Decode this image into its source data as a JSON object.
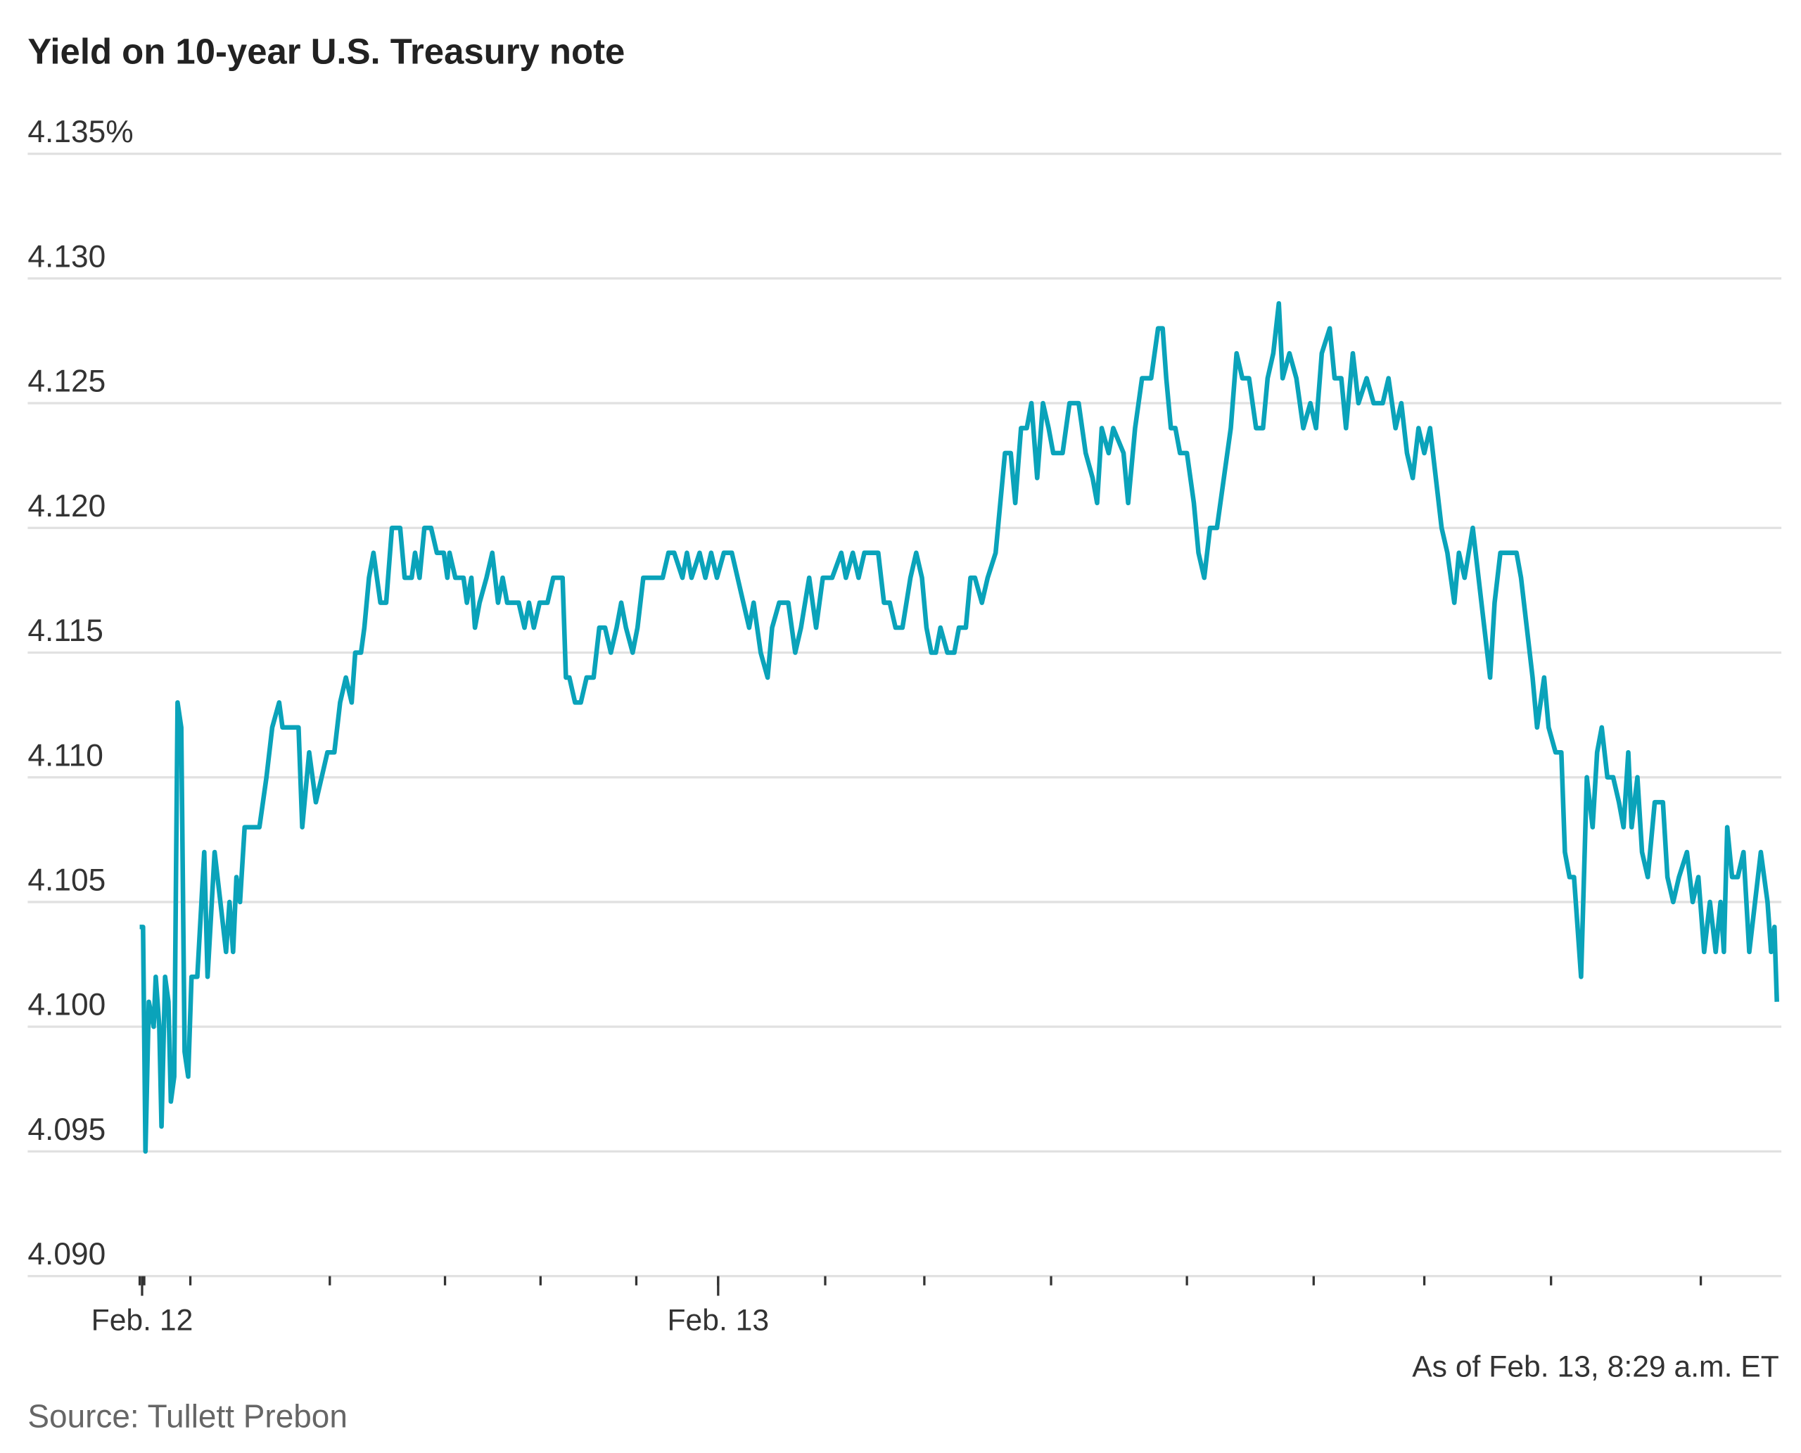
{
  "chart_data": {
    "type": "line",
    "title": "Yield on 10-year U.S. Treasury note",
    "ylabel": "",
    "xlabel": "",
    "ylim": [
      4.09,
      4.135
    ],
    "yticks": [
      4.135,
      4.13,
      4.125,
      4.12,
      4.115,
      4.11,
      4.105,
      4.1,
      4.095,
      4.09
    ],
    "ytick_labels": [
      "4.135%",
      "4.130",
      "4.125",
      "4.120",
      "4.115",
      "4.110",
      "4.105",
      "4.100",
      "4.095",
      "4.090"
    ],
    "x_unit": "hours since start of plotted period",
    "xlim": [
      0,
      68.3
    ],
    "x_ticks": [
      0,
      0.19,
      2.11,
      7.92,
      12.72,
      16.7,
      20.69,
      24.1,
      28.56,
      32.69,
      37.97,
      43.63,
      48.91,
      53.52,
      58.8,
      65.04
    ],
    "x_major_ticks": [
      {
        "x": 0.1,
        "label": "Feb. 12"
      },
      {
        "x": 24.1,
        "label": "Feb. 13"
      }
    ],
    "grid": true,
    "line_color": "#0aa3ba",
    "series": [
      {
        "name": "10-year yield",
        "points": [
          [
            0,
            4.104
          ],
          [
            0.14,
            4.104
          ],
          [
            0.24,
            4.095
          ],
          [
            0.38,
            4.101
          ],
          [
            0.58,
            4.1
          ],
          [
            0.67,
            4.102
          ],
          [
            0.82,
            4.1
          ],
          [
            0.91,
            4.096
          ],
          [
            1.06,
            4.102
          ],
          [
            1.2,
            4.101
          ],
          [
            1.3,
            4.097
          ],
          [
            1.44,
            4.098
          ],
          [
            1.58,
            4.113
          ],
          [
            1.73,
            4.112
          ],
          [
            1.87,
            4.099
          ],
          [
            2.02,
            4.098
          ],
          [
            2.16,
            4.102
          ],
          [
            2.4,
            4.102
          ],
          [
            2.69,
            4.107
          ],
          [
            2.83,
            4.102
          ],
          [
            3.12,
            4.107
          ],
          [
            3.36,
            4.105
          ],
          [
            3.6,
            4.103
          ],
          [
            3.74,
            4.105
          ],
          [
            3.89,
            4.103
          ],
          [
            4.03,
            4.106
          ],
          [
            4.18,
            4.105
          ],
          [
            4.37,
            4.108
          ],
          [
            4.99,
            4.108
          ],
          [
            5.28,
            4.11
          ],
          [
            5.52,
            4.112
          ],
          [
            5.81,
            4.113
          ],
          [
            5.95,
            4.112
          ],
          [
            6.62,
            4.112
          ],
          [
            6.77,
            4.108
          ],
          [
            7.06,
            4.111
          ],
          [
            7.34,
            4.109
          ],
          [
            7.58,
            4.11
          ],
          [
            7.82,
            4.111
          ],
          [
            8.11,
            4.111
          ],
          [
            8.35,
            4.113
          ],
          [
            8.59,
            4.114
          ],
          [
            8.83,
            4.113
          ],
          [
            8.98,
            4.115
          ],
          [
            9.22,
            4.115
          ],
          [
            9.36,
            4.116
          ],
          [
            9.55,
            4.118
          ],
          [
            9.74,
            4.119
          ],
          [
            10.03,
            4.117
          ],
          [
            10.27,
            4.117
          ],
          [
            10.51,
            4.12
          ],
          [
            10.85,
            4.12
          ],
          [
            11.04,
            4.118
          ],
          [
            11.33,
            4.118
          ],
          [
            11.47,
            4.119
          ],
          [
            11.66,
            4.118
          ],
          [
            11.86,
            4.12
          ],
          [
            12.14,
            4.12
          ],
          [
            12.38,
            4.119
          ],
          [
            12.67,
            4.119
          ],
          [
            12.82,
            4.118
          ],
          [
            12.91,
            4.119
          ],
          [
            13.15,
            4.118
          ],
          [
            13.49,
            4.118
          ],
          [
            13.63,
            4.117
          ],
          [
            13.82,
            4.118
          ],
          [
            13.97,
            4.116
          ],
          [
            14.16,
            4.117
          ],
          [
            14.45,
            4.118
          ],
          [
            14.69,
            4.119
          ],
          [
            14.93,
            4.117
          ],
          [
            15.12,
            4.118
          ],
          [
            15.31,
            4.117
          ],
          [
            15.79,
            4.117
          ],
          [
            16.03,
            4.116
          ],
          [
            16.22,
            4.117
          ],
          [
            16.42,
            4.116
          ],
          [
            16.66,
            4.117
          ],
          [
            16.99,
            4.117
          ],
          [
            17.23,
            4.118
          ],
          [
            17.62,
            4.118
          ],
          [
            17.76,
            4.114
          ],
          [
            17.9,
            4.114
          ],
          [
            18.14,
            4.113
          ],
          [
            18.38,
            4.113
          ],
          [
            18.62,
            4.114
          ],
          [
            18.91,
            4.114
          ],
          [
            19.15,
            4.116
          ],
          [
            19.39,
            4.116
          ],
          [
            19.63,
            4.115
          ],
          [
            19.87,
            4.116
          ],
          [
            20.06,
            4.117
          ],
          [
            20.26,
            4.116
          ],
          [
            20.54,
            4.115
          ],
          [
            20.74,
            4.116
          ],
          [
            20.98,
            4.118
          ],
          [
            21.55,
            4.118
          ],
          [
            21.79,
            4.118
          ],
          [
            22.03,
            4.119
          ],
          [
            22.27,
            4.119
          ],
          [
            22.61,
            4.118
          ],
          [
            22.8,
            4.119
          ],
          [
            22.99,
            4.118
          ],
          [
            23.33,
            4.119
          ],
          [
            23.57,
            4.118
          ],
          [
            23.81,
            4.119
          ],
          [
            24.05,
            4.118
          ],
          [
            24.34,
            4.119
          ],
          [
            24.67,
            4.119
          ],
          [
            24.91,
            4.118
          ],
          [
            25.15,
            4.117
          ],
          [
            25.39,
            4.116
          ],
          [
            25.58,
            4.117
          ],
          [
            25.87,
            4.115
          ],
          [
            26.16,
            4.114
          ],
          [
            26.35,
            4.116
          ],
          [
            26.64,
            4.117
          ],
          [
            27.02,
            4.117
          ],
          [
            27.31,
            4.115
          ],
          [
            27.55,
            4.116
          ],
          [
            27.89,
            4.118
          ],
          [
            28.18,
            4.116
          ],
          [
            28.46,
            4.118
          ],
          [
            28.85,
            4.118
          ],
          [
            29.23,
            4.119
          ],
          [
            29.42,
            4.118
          ],
          [
            29.71,
            4.119
          ],
          [
            29.95,
            4.118
          ],
          [
            30.19,
            4.119
          ],
          [
            30.77,
            4.119
          ],
          [
            31.01,
            4.117
          ],
          [
            31.25,
            4.117
          ],
          [
            31.49,
            4.116
          ],
          [
            31.78,
            4.116
          ],
          [
            32.11,
            4.118
          ],
          [
            32.35,
            4.119
          ],
          [
            32.59,
            4.118
          ],
          [
            32.78,
            4.116
          ],
          [
            32.98,
            4.115
          ],
          [
            33.17,
            4.115
          ],
          [
            33.36,
            4.116
          ],
          [
            33.65,
            4.115
          ],
          [
            33.94,
            4.115
          ],
          [
            34.13,
            4.116
          ],
          [
            34.42,
            4.116
          ],
          [
            34.61,
            4.118
          ],
          [
            34.8,
            4.118
          ],
          [
            35.09,
            4.117
          ],
          [
            35.33,
            4.118
          ],
          [
            35.66,
            4.119
          ],
          [
            36.05,
            4.123
          ],
          [
            36.29,
            4.123
          ],
          [
            36.48,
            4.121
          ],
          [
            36.72,
            4.124
          ],
          [
            36.96,
            4.124
          ],
          [
            37.15,
            4.125
          ],
          [
            37.39,
            4.122
          ],
          [
            37.63,
            4.125
          ],
          [
            37.87,
            4.124
          ],
          [
            38.06,
            4.123
          ],
          [
            38.45,
            4.123
          ],
          [
            38.74,
            4.125
          ],
          [
            39.12,
            4.125
          ],
          [
            39.41,
            4.123
          ],
          [
            39.7,
            4.122
          ],
          [
            39.89,
            4.121
          ],
          [
            40.08,
            4.124
          ],
          [
            40.37,
            4.123
          ],
          [
            40.56,
            4.124
          ],
          [
            40.99,
            4.123
          ],
          [
            41.18,
            4.121
          ],
          [
            41.47,
            4.124
          ],
          [
            41.76,
            4.126
          ],
          [
            42.14,
            4.126
          ],
          [
            42.43,
            4.128
          ],
          [
            42.62,
            4.128
          ],
          [
            42.77,
            4.126
          ],
          [
            42.96,
            4.124
          ],
          [
            43.15,
            4.124
          ],
          [
            43.34,
            4.123
          ],
          [
            43.63,
            4.123
          ],
          [
            43.92,
            4.121
          ],
          [
            44.11,
            4.119
          ],
          [
            44.35,
            4.118
          ],
          [
            44.59,
            4.12
          ],
          [
            44.88,
            4.12
          ],
          [
            45.17,
            4.122
          ],
          [
            45.46,
            4.124
          ],
          [
            45.7,
            4.127
          ],
          [
            45.94,
            4.126
          ],
          [
            46.22,
            4.126
          ],
          [
            46.51,
            4.124
          ],
          [
            46.8,
            4.124
          ],
          [
            46.99,
            4.126
          ],
          [
            47.23,
            4.127
          ],
          [
            47.46,
            4.129
          ],
          [
            47.62,
            4.126
          ],
          [
            47.9,
            4.127
          ],
          [
            48.19,
            4.126
          ],
          [
            48.48,
            4.124
          ],
          [
            48.77,
            4.125
          ],
          [
            49.01,
            4.124
          ],
          [
            49.25,
            4.127
          ],
          [
            49.58,
            4.128
          ],
          [
            49.78,
            4.126
          ],
          [
            50.06,
            4.126
          ],
          [
            50.26,
            4.124
          ],
          [
            50.54,
            4.127
          ],
          [
            50.78,
            4.125
          ],
          [
            51.12,
            4.126
          ],
          [
            51.41,
            4.125
          ],
          [
            51.79,
            4.125
          ],
          [
            52.03,
            4.126
          ],
          [
            52.32,
            4.124
          ],
          [
            52.56,
            4.125
          ],
          [
            52.8,
            4.123
          ],
          [
            53.04,
            4.122
          ],
          [
            53.28,
            4.124
          ],
          [
            53.52,
            4.123
          ],
          [
            53.76,
            4.124
          ],
          [
            54.0,
            4.122
          ],
          [
            54.24,
            4.12
          ],
          [
            54.48,
            4.119
          ],
          [
            54.77,
            4.117
          ],
          [
            54.96,
            4.119
          ],
          [
            55.2,
            4.118
          ],
          [
            55.54,
            4.12
          ],
          [
            55.78,
            4.118
          ],
          [
            56.02,
            4.116
          ],
          [
            56.26,
            4.114
          ],
          [
            56.45,
            4.117
          ],
          [
            56.69,
            4.119
          ],
          [
            56.98,
            4.119
          ],
          [
            57.36,
            4.119
          ],
          [
            57.55,
            4.118
          ],
          [
            57.79,
            4.116
          ],
          [
            58.03,
            4.114
          ],
          [
            58.22,
            4.112
          ],
          [
            58.51,
            4.114
          ],
          [
            58.7,
            4.112
          ],
          [
            58.99,
            4.111
          ],
          [
            59.23,
            4.111
          ],
          [
            59.38,
            4.107
          ],
          [
            59.57,
            4.106
          ],
          [
            59.76,
            4.106
          ],
          [
            60.05,
            4.102
          ],
          [
            60.29,
            4.11
          ],
          [
            60.53,
            4.108
          ],
          [
            60.72,
            4.111
          ],
          [
            60.91,
            4.112
          ],
          [
            61.15,
            4.11
          ],
          [
            61.39,
            4.11
          ],
          [
            61.63,
            4.109
          ],
          [
            61.82,
            4.108
          ],
          [
            62.02,
            4.111
          ],
          [
            62.16,
            4.108
          ],
          [
            62.4,
            4.11
          ],
          [
            62.59,
            4.107
          ],
          [
            62.83,
            4.106
          ],
          [
            63.12,
            4.109
          ],
          [
            63.46,
            4.109
          ],
          [
            63.65,
            4.106
          ],
          [
            63.89,
            4.105
          ],
          [
            64.13,
            4.106
          ],
          [
            64.46,
            4.107
          ],
          [
            64.7,
            4.105
          ],
          [
            64.94,
            4.106
          ],
          [
            65.18,
            4.103
          ],
          [
            65.42,
            4.105
          ],
          [
            65.66,
            4.103
          ],
          [
            65.86,
            4.105
          ],
          [
            66.0,
            4.103
          ],
          [
            66.14,
            4.108
          ],
          [
            66.34,
            4.106
          ],
          [
            66.58,
            4.106
          ],
          [
            66.82,
            4.107
          ],
          [
            67.06,
            4.103
          ],
          [
            67.3,
            4.105
          ],
          [
            67.54,
            4.107
          ],
          [
            67.82,
            4.105
          ],
          [
            67.97,
            4.103
          ],
          [
            68.11,
            4.104
          ],
          [
            68.21,
            4.101
          ]
        ]
      }
    ],
    "annotation": "As of Feb. 13, 8:29 a.m. ET",
    "source": "Source: Tullett Prebon"
  }
}
